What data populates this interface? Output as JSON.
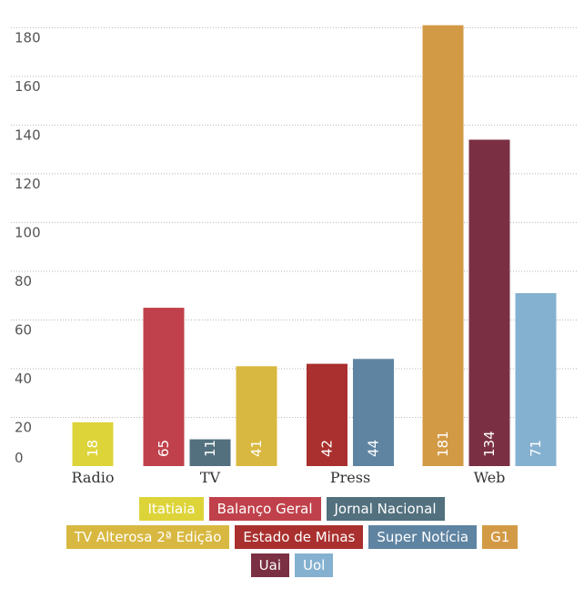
{
  "chart_data": {
    "type": "bar",
    "title": "",
    "xlabel": "",
    "ylabel": "",
    "ylim": [
      0,
      185
    ],
    "yticks": [
      0,
      20,
      40,
      60,
      80,
      100,
      120,
      140,
      160,
      180
    ],
    "grid": true,
    "legend_position": "bottom",
    "groups": [
      {
        "category": "Radio",
        "bars": [
          {
            "series": "Itatiaia",
            "value": 18
          }
        ]
      },
      {
        "category": "TV",
        "bars": [
          {
            "series": "Balanço Geral",
            "value": 65
          },
          {
            "series": "Jornal Nacional",
            "value": 11
          },
          {
            "series": "TV Alterosa 2ª Edição",
            "value": 41
          }
        ]
      },
      {
        "category": "Press",
        "bars": [
          {
            "series": "Estado de Minas",
            "value": 42
          },
          {
            "series": "Super Notícia",
            "value": 44
          }
        ]
      },
      {
        "category": "Web",
        "bars": [
          {
            "series": "G1",
            "value": 181
          },
          {
            "series": "Uai",
            "value": 134
          },
          {
            "series": "Uol",
            "value": 71
          }
        ]
      }
    ],
    "legend_rows": [
      [
        {
          "name": "Itatiaia",
          "color": "#ddd43a"
        },
        {
          "name": "Balanço Geral",
          "color": "#c0414b"
        },
        {
          "name": "Jornal Nacional",
          "color": "#52707e"
        }
      ],
      [
        {
          "name": "TV Alterosa 2ª Edição",
          "color": "#d8b840"
        },
        {
          "name": "Estado de Minas",
          "color": "#a9302e"
        },
        {
          "name": "Super Notícia",
          "color": "#5f84a2"
        },
        {
          "name": "G1",
          "color": "#d39a45"
        }
      ],
      [
        {
          "name": "Uai",
          "color": "#7a2f42"
        },
        {
          "name": "Uol",
          "color": "#85b1d0"
        }
      ]
    ]
  }
}
